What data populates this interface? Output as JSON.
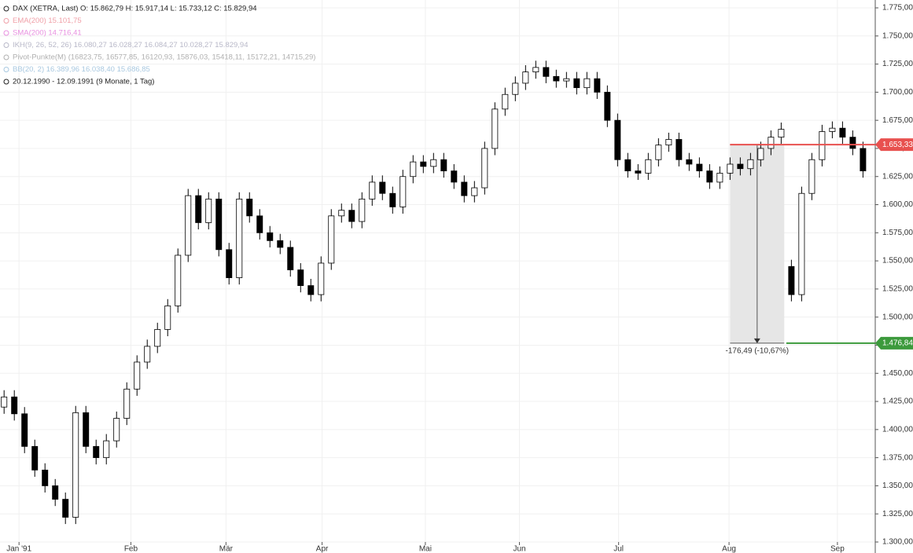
{
  "chart_data": {
    "type": "candlestick",
    "legend": [
      {
        "text": "DAX (XETRA, Last)  O: 15.862,79  H: 15.917,14  L: 15.733,12  C: 15.829,94",
        "color": "#222222"
      },
      {
        "text": "EMA(200)  15.101,75",
        "color": "#f0a0a8"
      },
      {
        "text": "SMA(200)  14.716,41",
        "color": "#e890e0"
      },
      {
        "text": "IKH(9, 26, 52, 26)  16.080,27  16.028,27  16.084,27  10.028,27  15.829,94",
        "color": "#b8b8c8"
      },
      {
        "text": "Pivot-Punkte(M)  (16823,75, 16577,85, 16120,93, 15876,03, 15418,11, 15172,21, 14715,29)",
        "color": "#b0b0b0"
      },
      {
        "text": "BB(20, 2)  16.389,96  16.038,40  15.686,85",
        "color": "#a8c8e0"
      },
      {
        "text": "20.12.1990 - 12.09.1991  (9 Monate, 1 Tag)",
        "color": "#222222"
      }
    ],
    "open": [
      1420,
      1429,
      1414,
      1385,
      1364,
      1350,
      1338,
      1322,
      1415,
      1385,
      1375,
      1390,
      1410,
      1436,
      1460,
      1474,
      1489,
      1510,
      1555,
      1608,
      1584,
      1605,
      1560,
      1535,
      1605,
      1590,
      1575,
      1568,
      1562,
      1542,
      1528,
      1520,
      1548,
      1590,
      1595,
      1585,
      1605,
      1620,
      1610,
      1598,
      1625,
      1638,
      1634,
      1640,
      1630,
      1620,
      1608,
      1615,
      1650,
      1685,
      1698,
      1708,
      1718,
      1722,
      1714,
      1710,
      1712,
      1704,
      1712,
      1700,
      1675,
      1640,
      1630,
      1628,
      1640,
      1653,
      1658,
      1640,
      1636,
      1630,
      1620,
      1628,
      1636,
      1632,
      1640,
      1650,
      1660,
      1545,
      1520,
      1610,
      1640,
      1665,
      1668,
      1660,
      1650
    ],
    "high": [
      1435,
      1435,
      1420,
      1391,
      1370,
      1356,
      1344,
      1421,
      1421,
      1391,
      1396,
      1416,
      1442,
      1466,
      1480,
      1495,
      1516,
      1561,
      1614,
      1614,
      1611,
      1611,
      1566,
      1611,
      1611,
      1596,
      1581,
      1574,
      1568,
      1548,
      1534,
      1554,
      1596,
      1601,
      1601,
      1611,
      1626,
      1626,
      1616,
      1631,
      1644,
      1644,
      1646,
      1646,
      1636,
      1626,
      1621,
      1656,
      1691,
      1704,
      1714,
      1724,
      1728,
      1728,
      1720,
      1718,
      1718,
      1718,
      1718,
      1706,
      1681,
      1646,
      1636,
      1646,
      1659,
      1664,
      1664,
      1646,
      1642,
      1636,
      1634,
      1642,
      1642,
      1646,
      1656,
      1666,
      1673,
      1551,
      1616,
      1646,
      1671,
      1674,
      1674,
      1666,
      1656
    ],
    "low": [
      1414,
      1408,
      1379,
      1358,
      1344,
      1332,
      1316,
      1316,
      1379,
      1369,
      1369,
      1384,
      1404,
      1430,
      1454,
      1468,
      1483,
      1504,
      1549,
      1578,
      1578,
      1554,
      1529,
      1529,
      1584,
      1569,
      1562,
      1556,
      1536,
      1522,
      1514,
      1514,
      1542,
      1584,
      1579,
      1579,
      1599,
      1604,
      1592,
      1592,
      1619,
      1628,
      1628,
      1624,
      1614,
      1602,
      1602,
      1609,
      1644,
      1679,
      1692,
      1702,
      1712,
      1708,
      1704,
      1704,
      1698,
      1698,
      1694,
      1669,
      1634,
      1624,
      1622,
      1622,
      1634,
      1647,
      1634,
      1630,
      1624,
      1614,
      1614,
      1622,
      1626,
      1626,
      1634,
      1644,
      1654,
      1514,
      1514,
      1604,
      1634,
      1659,
      1654,
      1644,
      1624
    ],
    "close": [
      1429,
      1414,
      1385,
      1364,
      1350,
      1338,
      1322,
      1415,
      1385,
      1375,
      1390,
      1410,
      1436,
      1460,
      1474,
      1489,
      1510,
      1555,
      1608,
      1584,
      1605,
      1560,
      1535,
      1605,
      1590,
      1575,
      1568,
      1562,
      1542,
      1528,
      1520,
      1548,
      1590,
      1595,
      1585,
      1605,
      1620,
      1610,
      1598,
      1625,
      1638,
      1634,
      1640,
      1630,
      1620,
      1608,
      1615,
      1650,
      1685,
      1698,
      1708,
      1718,
      1722,
      1714,
      1710,
      1712,
      1704,
      1712,
      1700,
      1675,
      1640,
      1630,
      1628,
      1640,
      1653,
      1658,
      1640,
      1636,
      1630,
      1620,
      1628,
      1636,
      1632,
      1640,
      1650,
      1660,
      1667,
      1520,
      1610,
      1640,
      1665,
      1668,
      1660,
      1650,
      1630
    ],
    "up_color": "#ffffff",
    "down_color": "#000000",
    "xlim": [
      -0.4,
      85.2
    ],
    "xticks": [
      {
        "value": 1.46,
        "label": "Jan '91"
      },
      {
        "value": 12.4,
        "label": "Feb"
      },
      {
        "value": 21.7,
        "label": "Mär"
      },
      {
        "value": 31.1,
        "label": "Apr"
      },
      {
        "value": 41.2,
        "label": "Mai"
      },
      {
        "value": 50.4,
        "label": "Jun"
      },
      {
        "value": 60.1,
        "label": "Jul"
      },
      {
        "value": 70.9,
        "label": "Aug"
      },
      {
        "value": 81.5,
        "label": "Sep"
      }
    ],
    "ylim": [
      1300,
      1775
    ],
    "yticks": [
      {
        "value": 1300,
        "label": "1.300,00"
      },
      {
        "value": 1325,
        "label": "1.325,00"
      },
      {
        "value": 1350,
        "label": "1.350,00"
      },
      {
        "value": 1375,
        "label": "1.375,00"
      },
      {
        "value": 1400,
        "label": "1.400,00"
      },
      {
        "value": 1425,
        "label": "1.425,00"
      },
      {
        "value": 1450,
        "label": "1.450,00"
      },
      {
        "value": 1475,
        "label": "1.475,00"
      },
      {
        "value": 1500,
        "label": "1.500,00"
      },
      {
        "value": 1525,
        "label": "1.525,00"
      },
      {
        "value": 1550,
        "label": "1.550,00"
      },
      {
        "value": 1575,
        "label": "1.575,00"
      },
      {
        "value": 1600,
        "label": "1.600,00"
      },
      {
        "value": 1625,
        "label": "1.625,00"
      },
      {
        "value": 1650,
        "label": "1.650,00"
      },
      {
        "value": 1675,
        "label": "1.675,00"
      },
      {
        "value": 1700,
        "label": "1.700,00"
      },
      {
        "value": 1725,
        "label": "1.725,00"
      },
      {
        "value": 1750,
        "label": "1.750,00"
      },
      {
        "value": 1775,
        "label": "1.775,00"
      }
    ],
    "grid": true,
    "measure": {
      "x": [
        71,
        76.3
      ],
      "from": 1653.33,
      "to": 1476.84,
      "label": "-176,49 (-10,67%)"
    },
    "price_lines": [
      {
        "value": 1653.33,
        "label": "1.653,33",
        "color": "#e8514f",
        "x": 71
      },
      {
        "value": 1476.84,
        "label": "1.476,84",
        "color": "#3c9a3c",
        "x": 76.5
      }
    ]
  }
}
